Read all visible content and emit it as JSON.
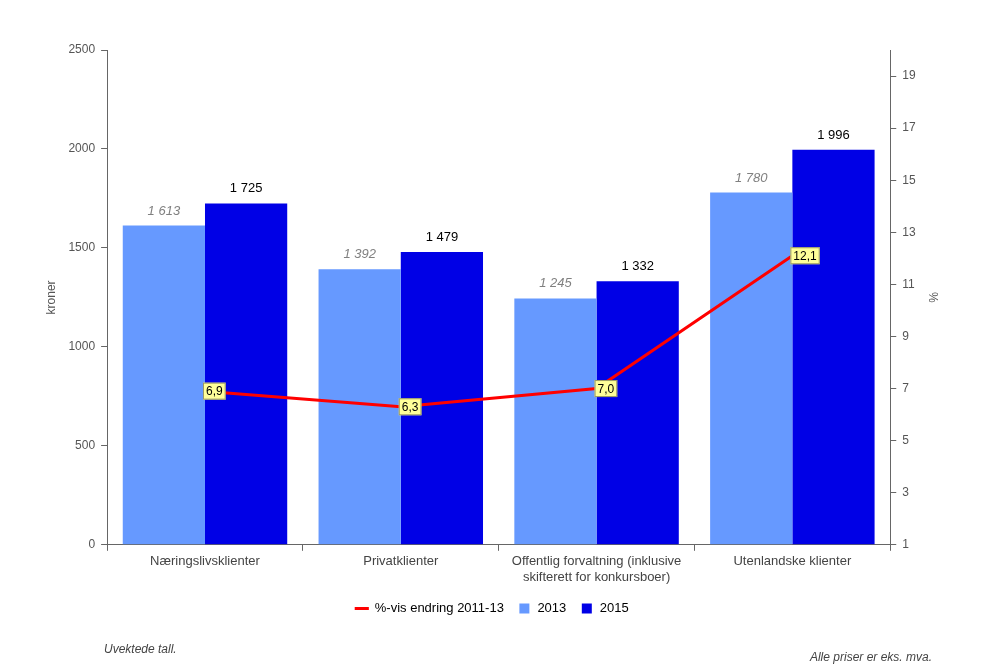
{
  "chart_data": {
    "type": "bar",
    "categories": [
      "Næringslivsklienter",
      "Privatklienter",
      "Offentlig forvaltning (inklusive skifterett for konkursboer)",
      "Utenlandske klienter"
    ],
    "series": [
      {
        "name": "2013",
        "color": "#6699FF",
        "values": [
          1613,
          1392,
          1245,
          1780
        ],
        "value_labels": [
          "1 613",
          "1 392",
          "1 245",
          "1 780"
        ]
      },
      {
        "name": "2015",
        "color": "#0000E6",
        "values": [
          1725,
          1479,
          1332,
          1996
        ],
        "value_labels": [
          "1 725",
          "1 479",
          "1 332",
          "1 996"
        ]
      },
      {
        "name": "%-vis endring 2011-13",
        "type": "line",
        "axis": "y2",
        "color": "#FF0000",
        "values": [
          6.9,
          6.3,
          7.0,
          12.1
        ],
        "value_labels": [
          "6,9",
          "6,3",
          "7,0",
          "12,1"
        ]
      }
    ],
    "ylabel": "kroner",
    "y2label": "%",
    "ylim": [
      0,
      2500
    ],
    "yticks": [
      0,
      500,
      1000,
      1500,
      2000,
      2500
    ],
    "y2lim": [
      1,
      20
    ],
    "y2ticks": [
      1,
      3,
      5,
      7,
      9,
      11,
      13,
      15,
      17,
      19
    ],
    "grid": false,
    "legend": "bottom",
    "data_labels": true,
    "annotations": [
      "Uvektede tall.",
      "Alle priser er eks. mva."
    ]
  }
}
